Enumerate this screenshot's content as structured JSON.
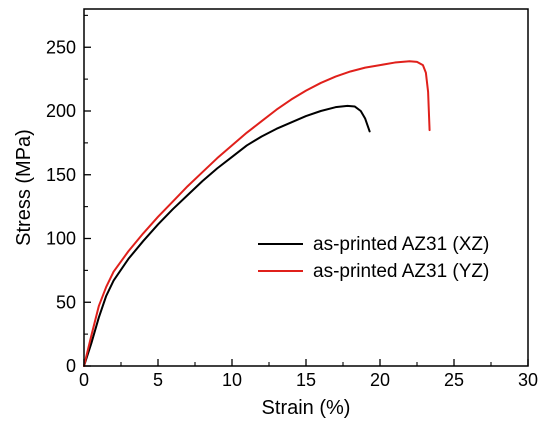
{
  "chart_data": {
    "type": "line",
    "title": "",
    "xlabel": "Strain (%)",
    "ylabel": "Stress (MPa)",
    "xlim": [
      0,
      30
    ],
    "ylim": [
      0,
      280
    ],
    "xticks": [
      0,
      5,
      10,
      15,
      20,
      25,
      30
    ],
    "yticks": [
      0,
      50,
      100,
      150,
      200,
      250
    ],
    "grid": false,
    "legend_position": "right",
    "series": [
      {
        "name": "as-printed AZ31 (XZ)",
        "color": "#000000",
        "x": [
          0,
          0.5,
          1.0,
          1.5,
          2.0,
          3.0,
          4.0,
          5.0,
          6.0,
          7.0,
          8.0,
          9.0,
          10.0,
          11.0,
          12.0,
          13.0,
          14.0,
          15.0,
          16.0,
          17.0,
          17.8,
          18.3,
          18.7,
          19.0,
          19.15,
          19.3
        ],
        "y": [
          0,
          18,
          38,
          55,
          67,
          84,
          98,
          111,
          123,
          134,
          145,
          155,
          164,
          173,
          180,
          186,
          191,
          196,
          200,
          203,
          204,
          203.5,
          200,
          194,
          189,
          184
        ]
      },
      {
        "name": "as-printed AZ31 (YZ)",
        "color": "#e0201b",
        "x": [
          0,
          0.5,
          1.0,
          1.5,
          2.0,
          3.0,
          4.0,
          5.0,
          6.0,
          7.0,
          8.0,
          9.0,
          10.0,
          11.0,
          12.0,
          13.0,
          14.0,
          15.0,
          16.0,
          17.0,
          18.0,
          19.0,
          20.0,
          21.0,
          22.0,
          22.5,
          22.9,
          23.1,
          23.25,
          23.3,
          23.35
        ],
        "y": [
          0,
          24,
          47,
          62,
          74,
          90,
          104,
          117,
          129,
          141,
          152,
          163,
          173,
          183,
          192,
          201,
          209,
          216,
          222,
          227,
          231,
          234,
          236,
          238,
          239,
          238.5,
          236,
          230,
          215,
          200,
          185
        ]
      }
    ]
  }
}
